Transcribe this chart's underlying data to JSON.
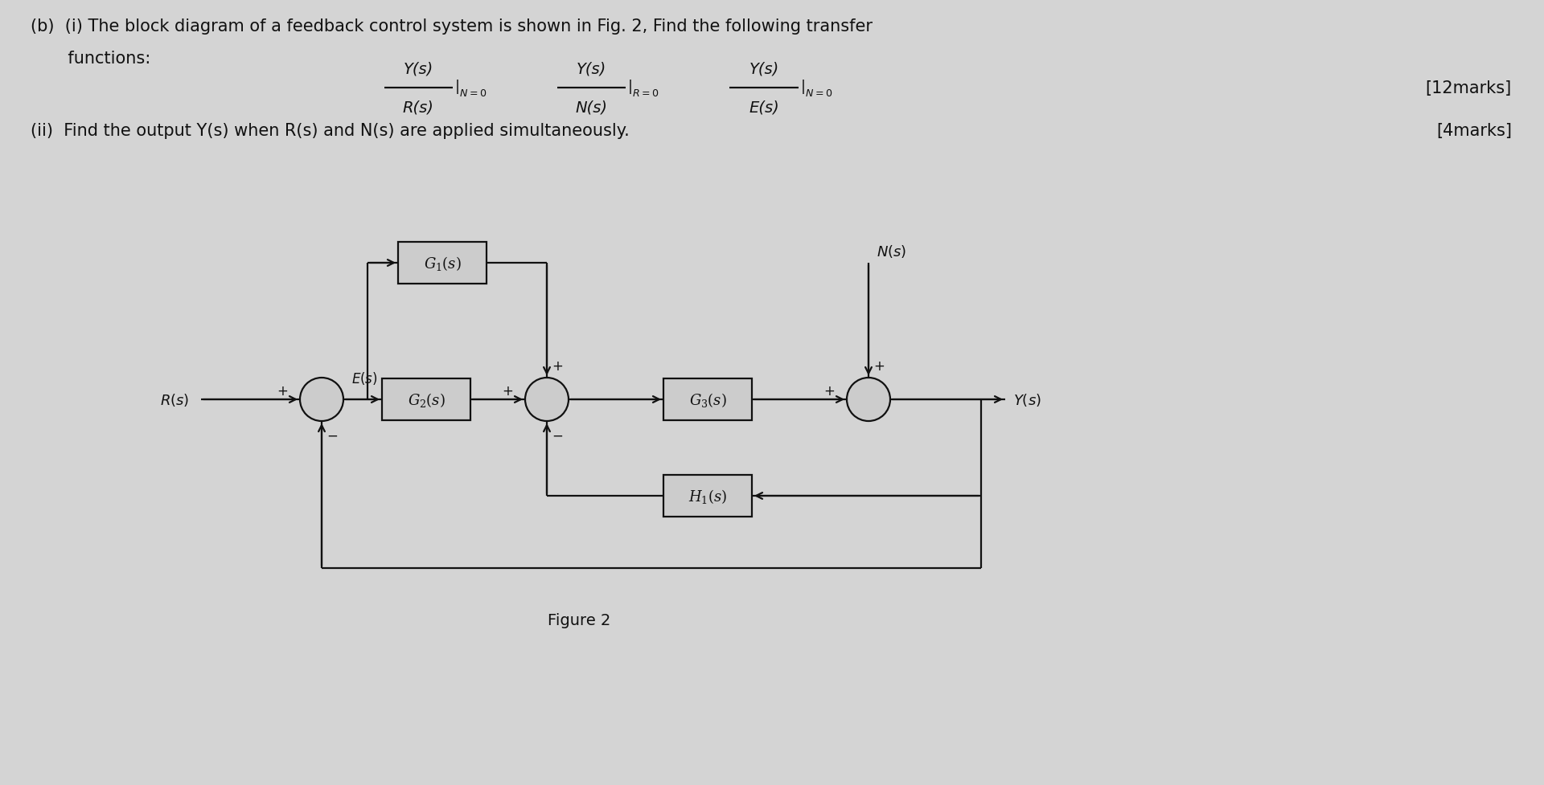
{
  "bg_color": "#d4d4d4",
  "text_color": "#111111",
  "box_fill": "#cccccc",
  "line_color": "#111111",
  "title_line1": "(b)  (i) The block diagram of a feedback control system is shown in Fig. 2, Find the following transfer",
  "title_line2": "       functions:",
  "marks1": "[12marks]",
  "part_ii": "(ii)  Find the output Y(s) when R(s) and N(s) are applied simultaneously.",
  "marks2": "[4marks]",
  "figure_label": "Figure 2",
  "figsize": [
    19.2,
    9.78
  ],
  "dpi": 100,
  "xlim": [
    0,
    19.2
  ],
  "ylim": [
    0,
    9.78
  ],
  "my": 4.8,
  "sj1x": 4.0,
  "sj2x": 6.8,
  "sj3x": 10.8,
  "g1x": 5.5,
  "g1y": 6.5,
  "g2x": 5.3,
  "g3x": 8.8,
  "h1x": 8.8,
  "h1y": 3.6,
  "ns_top_y": 6.5,
  "y_out_x": 12.5,
  "outer_bottom_y": 2.7,
  "outer_left_x": 4.0,
  "bw": 1.1,
  "bh": 0.52,
  "sj_r": 0.27,
  "lw": 1.6,
  "fontsize_text": 15,
  "fontsize_block": 13,
  "fontsize_sign": 12
}
